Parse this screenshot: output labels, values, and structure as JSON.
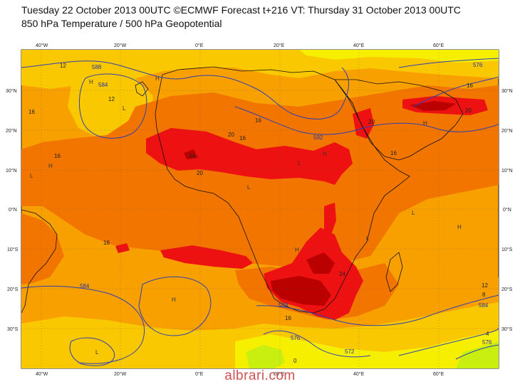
{
  "header": {
    "title_line1": "Tuesday 22 October 2013 00UTC ©ECMWF Forecast t+216 VT: Thursday 31 October 2013 00UTC",
    "title_line2": "850 hPa Temperature / 500 hPa Geopotential"
  },
  "axes": {
    "lon_top": [
      "40°W",
      "20°W",
      "0°E",
      "20°E",
      "40°E",
      "60°E"
    ],
    "lon_bottom": [
      "40°W",
      "20°W",
      "0°E",
      "20°E",
      "40°E",
      "60°E"
    ],
    "lat_left": [
      "30°N",
      "20°N",
      "10°N",
      "0°N",
      "10°S",
      "20°S",
      "30°S"
    ],
    "lat_right": [
      "30°N",
      "20°N",
      "10°N",
      "0°N",
      "10°S",
      "20°S",
      "30°S"
    ]
  },
  "legend_colors": {
    "t8": "#f6f000",
    "t12": "#f9c800",
    "t16": "#f7a000",
    "t20": "#f27500",
    "t24": "#ee1111",
    "t28": "#bb0000",
    "t32": "#8a0010",
    "cold": "#c8ef10",
    "geopotential_line": "#3040b0",
    "coast": "#111111"
  },
  "temp_labels": [
    "12",
    "12",
    "16",
    "16",
    "20",
    "16",
    "16",
    "24",
    "20",
    "20",
    "20",
    "16",
    "16",
    "16",
    "24",
    "16",
    "12",
    "8",
    "4",
    "0"
  ],
  "gph_labels": [
    "584",
    "576",
    "584",
    "592",
    "588",
    "584",
    "576",
    "572",
    "588",
    "576"
  ],
  "pressure_marks": [
    "H",
    "H",
    "H",
    "L",
    "L",
    "L",
    "L",
    "H",
    "H",
    "H",
    "L",
    "L",
    "H",
    "L",
    "H"
  ],
  "watermark": "albrari.com"
}
